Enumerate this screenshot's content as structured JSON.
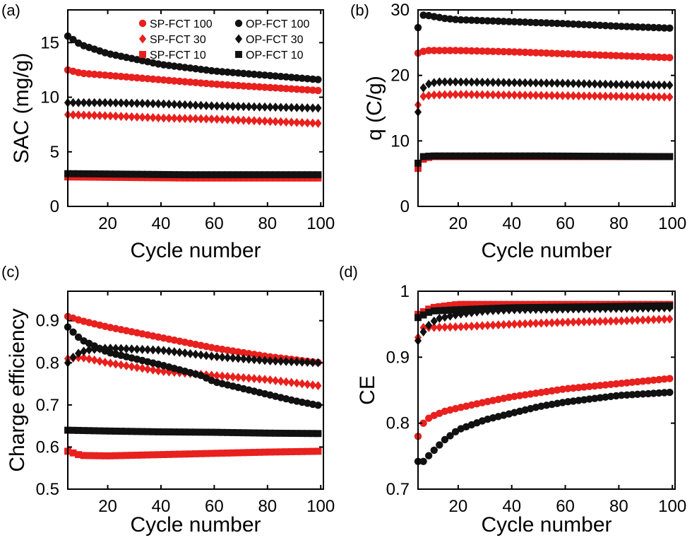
{
  "colors": {
    "sp": "#e8201e",
    "op": "#111111",
    "axis": "#000000",
    "background": "#ffffff"
  },
  "legend": {
    "entries": [
      {
        "label": "SP-FCT 100",
        "color": "sp",
        "marker": "circle"
      },
      {
        "label": "SP-FCT 30",
        "color": "sp",
        "marker": "diamond"
      },
      {
        "label": "SP-FCT 10",
        "color": "sp",
        "marker": "square"
      },
      {
        "label": "OP-FCT 100",
        "color": "op",
        "marker": "circle"
      },
      {
        "label": "OP-FCT 30",
        "color": "op",
        "marker": "diamond"
      },
      {
        "label": "OP-FCT 10",
        "color": "op",
        "marker": "square"
      }
    ]
  },
  "chart_data": [
    {
      "id": "a",
      "panel_label": "(a)",
      "type": "scatter",
      "xlabel": "Cycle number",
      "ylabel": "SAC (mg/g)",
      "xlim": [
        5,
        101
      ],
      "ylim": [
        0,
        18
      ],
      "xticks": [
        20,
        40,
        60,
        80,
        100
      ],
      "yticks": [
        0,
        5,
        10,
        15
      ],
      "ytick_labels": [
        "0",
        "5",
        "10",
        "15"
      ],
      "x_start": 5,
      "x_end": 100,
      "x_step": 2,
      "show_legend": true,
      "legend_position": "top-right",
      "series": [
        {
          "label": "SP-FCT 100",
          "marker": "circle",
          "color": "sp",
          "x": [
            5,
            10,
            20,
            40,
            60,
            80,
            100
          ],
          "y": [
            12.5,
            12.2,
            12.0,
            11.6,
            11.2,
            10.9,
            10.6
          ]
        },
        {
          "label": "SP-FCT 30",
          "marker": "diamond",
          "color": "sp",
          "x": [
            5,
            20,
            40,
            60,
            80,
            100
          ],
          "y": [
            8.4,
            8.3,
            8.1,
            8.0,
            7.8,
            7.6
          ]
        },
        {
          "label": "SP-FCT 10",
          "marker": "square",
          "color": "sp",
          "x": [
            5,
            50,
            100
          ],
          "y": [
            2.7,
            2.6,
            2.6
          ]
        },
        {
          "label": "OP-FCT 100",
          "marker": "circle",
          "color": "op",
          "x": [
            5,
            10,
            20,
            30,
            40,
            60,
            80,
            100
          ],
          "y": [
            15.6,
            14.8,
            14.0,
            13.5,
            13.0,
            12.4,
            12.0,
            11.6
          ]
        },
        {
          "label": "OP-FCT 30",
          "marker": "diamond",
          "color": "op",
          "x": [
            5,
            20,
            40,
            60,
            80,
            100
          ],
          "y": [
            9.5,
            9.5,
            9.4,
            9.2,
            9.1,
            9.0
          ]
        },
        {
          "label": "OP-FCT 10",
          "marker": "square",
          "color": "op",
          "x": [
            5,
            50,
            100
          ],
          "y": [
            3.0,
            2.9,
            2.9
          ]
        }
      ]
    },
    {
      "id": "b",
      "panel_label": "(b)",
      "type": "scatter",
      "xlabel": "Cycle number",
      "ylabel": "q (C/g)",
      "xlim": [
        5,
        101
      ],
      "ylim": [
        0,
        30
      ],
      "xticks": [
        20,
        40,
        60,
        80,
        100
      ],
      "yticks": [
        0,
        10,
        20,
        30
      ],
      "ytick_labels": [
        "0",
        "10",
        "20",
        "30"
      ],
      "x_start": 5,
      "x_end": 100,
      "x_step": 2,
      "show_legend": false,
      "series": [
        {
          "label": "SP-FCT 100",
          "marker": "circle",
          "color": "sp",
          "x": [
            5,
            8,
            20,
            40,
            60,
            80,
            100
          ],
          "y": [
            23.4,
            23.8,
            23.8,
            23.6,
            23.3,
            23.0,
            22.7
          ]
        },
        {
          "label": "SP-FCT 30",
          "marker": "diamond",
          "color": "sp",
          "x": [
            5,
            7,
            10,
            20,
            40,
            60,
            80,
            100
          ],
          "y": [
            15.5,
            16.8,
            17.0,
            17.1,
            17.0,
            16.9,
            16.8,
            16.7
          ]
        },
        {
          "label": "SP-FCT 10",
          "marker": "square",
          "color": "sp",
          "x": [
            5,
            7,
            10,
            50,
            100
          ],
          "y": [
            5.8,
            7.2,
            7.6,
            7.6,
            7.6
          ]
        },
        {
          "label": "OP-FCT 100",
          "marker": "circle",
          "color": "op",
          "x": [
            5,
            6,
            8,
            15,
            20,
            40,
            60,
            80,
            100
          ],
          "y": [
            27.3,
            29.2,
            29.2,
            28.7,
            28.5,
            28.2,
            27.9,
            27.5,
            27.2
          ]
        },
        {
          "label": "OP-FCT 30",
          "marker": "diamond",
          "color": "op",
          "x": [
            5,
            6,
            8,
            12,
            20,
            40,
            60,
            80,
            100
          ],
          "y": [
            14.4,
            17.6,
            18.6,
            19.0,
            19.0,
            18.9,
            18.8,
            18.6,
            18.5
          ]
        },
        {
          "label": "OP-FCT 10",
          "marker": "square",
          "color": "op",
          "x": [
            5,
            7,
            10,
            50,
            100
          ],
          "y": [
            6.6,
            7.6,
            7.7,
            7.7,
            7.6
          ]
        }
      ]
    },
    {
      "id": "c",
      "panel_label": "(c)",
      "type": "scatter",
      "xlabel": "Cycle number",
      "ylabel": "Charge efficiency",
      "xlim": [
        5,
        101
      ],
      "ylim": [
        0.5,
        0.97
      ],
      "xticks": [
        20,
        40,
        60,
        80,
        100
      ],
      "yticks": [
        0.5,
        0.6,
        0.7,
        0.8,
        0.9
      ],
      "ytick_labels": [
        "0.5",
        "0.6",
        "0.7",
        "0.8",
        "0.9"
      ],
      "x_start": 5,
      "x_end": 100,
      "x_step": 2,
      "show_legend": false,
      "series": [
        {
          "label": "SP-FCT 100",
          "marker": "circle",
          "color": "sp",
          "x": [
            5,
            10,
            20,
            40,
            60,
            80,
            100
          ],
          "y": [
            0.91,
            0.9,
            0.885,
            0.86,
            0.835,
            0.815,
            0.8
          ]
        },
        {
          "label": "SP-FCT 30",
          "marker": "diamond",
          "color": "sp",
          "x": [
            5,
            10,
            20,
            40,
            60,
            80,
            100
          ],
          "y": [
            0.81,
            0.813,
            0.8,
            0.78,
            0.77,
            0.76,
            0.745
          ]
        },
        {
          "label": "SP-FCT 10",
          "marker": "square",
          "color": "sp",
          "x": [
            5,
            10,
            20,
            40,
            60,
            80,
            100
          ],
          "y": [
            0.59,
            0.58,
            0.579,
            0.582,
            0.585,
            0.588,
            0.59
          ]
        },
        {
          "label": "OP-FCT 100",
          "marker": "circle",
          "color": "op",
          "x": [
            5,
            10,
            20,
            30,
            40,
            55,
            60,
            70,
            80,
            90,
            100
          ],
          "y": [
            0.885,
            0.855,
            0.825,
            0.81,
            0.795,
            0.77,
            0.755,
            0.74,
            0.725,
            0.71,
            0.698
          ]
        },
        {
          "label": "OP-FCT 30",
          "marker": "diamond",
          "color": "op",
          "x": [
            5,
            8,
            12,
            20,
            40,
            60,
            80,
            100
          ],
          "y": [
            0.8,
            0.82,
            0.83,
            0.835,
            0.83,
            0.815,
            0.805,
            0.8
          ]
        },
        {
          "label": "OP-FCT 10",
          "marker": "square",
          "color": "op",
          "x": [
            5,
            20,
            40,
            60,
            80,
            100
          ],
          "y": [
            0.64,
            0.638,
            0.636,
            0.635,
            0.633,
            0.632
          ]
        }
      ]
    },
    {
      "id": "d",
      "panel_label": "(d)",
      "type": "scatter",
      "xlabel": "Cycle number",
      "ylabel": "CE",
      "xlim": [
        5,
        101
      ],
      "ylim": [
        0.7,
        1.0
      ],
      "xticks": [
        20,
        40,
        60,
        80,
        100
      ],
      "yticks": [
        0.7,
        0.8,
        0.9,
        1.0
      ],
      "ytick_labels": [
        "0.7",
        "0.8",
        "0.9",
        "1"
      ],
      "x_start": 5,
      "x_end": 100,
      "x_step": 2,
      "show_legend": false,
      "series": [
        {
          "label": "SP-FCT 100",
          "marker": "circle",
          "color": "sp",
          "x": [
            5,
            6,
            8,
            10,
            15,
            20,
            30,
            40,
            60,
            80,
            100
          ],
          "y": [
            0.78,
            0.795,
            0.805,
            0.81,
            0.818,
            0.823,
            0.832,
            0.84,
            0.852,
            0.86,
            0.868
          ]
        },
        {
          "label": "SP-FCT 30",
          "marker": "diamond",
          "color": "sp",
          "x": [
            5,
            7,
            10,
            20,
            40,
            60,
            80,
            100
          ],
          "y": [
            0.93,
            0.945,
            0.945,
            0.946,
            0.95,
            0.953,
            0.955,
            0.958
          ]
        },
        {
          "label": "SP-FCT 10",
          "marker": "square",
          "color": "sp",
          "x": [
            5,
            10,
            20,
            40,
            60,
            80,
            100
          ],
          "y": [
            0.965,
            0.975,
            0.98,
            0.98,
            0.98,
            0.98,
            0.98
          ]
        },
        {
          "label": "OP-FCT 100",
          "marker": "circle",
          "color": "op",
          "x": [
            5,
            7,
            10,
            15,
            20,
            30,
            40,
            50,
            60,
            80,
            100
          ],
          "y": [
            0.742,
            0.742,
            0.755,
            0.775,
            0.79,
            0.805,
            0.815,
            0.825,
            0.832,
            0.842,
            0.847
          ]
        },
        {
          "label": "OP-FCT 30",
          "marker": "diamond",
          "color": "op",
          "x": [
            5,
            8,
            12,
            20,
            30,
            40,
            60,
            80,
            100
          ],
          "y": [
            0.925,
            0.945,
            0.958,
            0.965,
            0.97,
            0.972,
            0.973,
            0.974,
            0.975
          ]
        },
        {
          "label": "OP-FCT 10",
          "marker": "square",
          "color": "op",
          "x": [
            5,
            10,
            20,
            40,
            60,
            80,
            100
          ],
          "y": [
            0.96,
            0.97,
            0.972,
            0.975,
            0.976,
            0.977,
            0.978
          ]
        }
      ]
    }
  ]
}
